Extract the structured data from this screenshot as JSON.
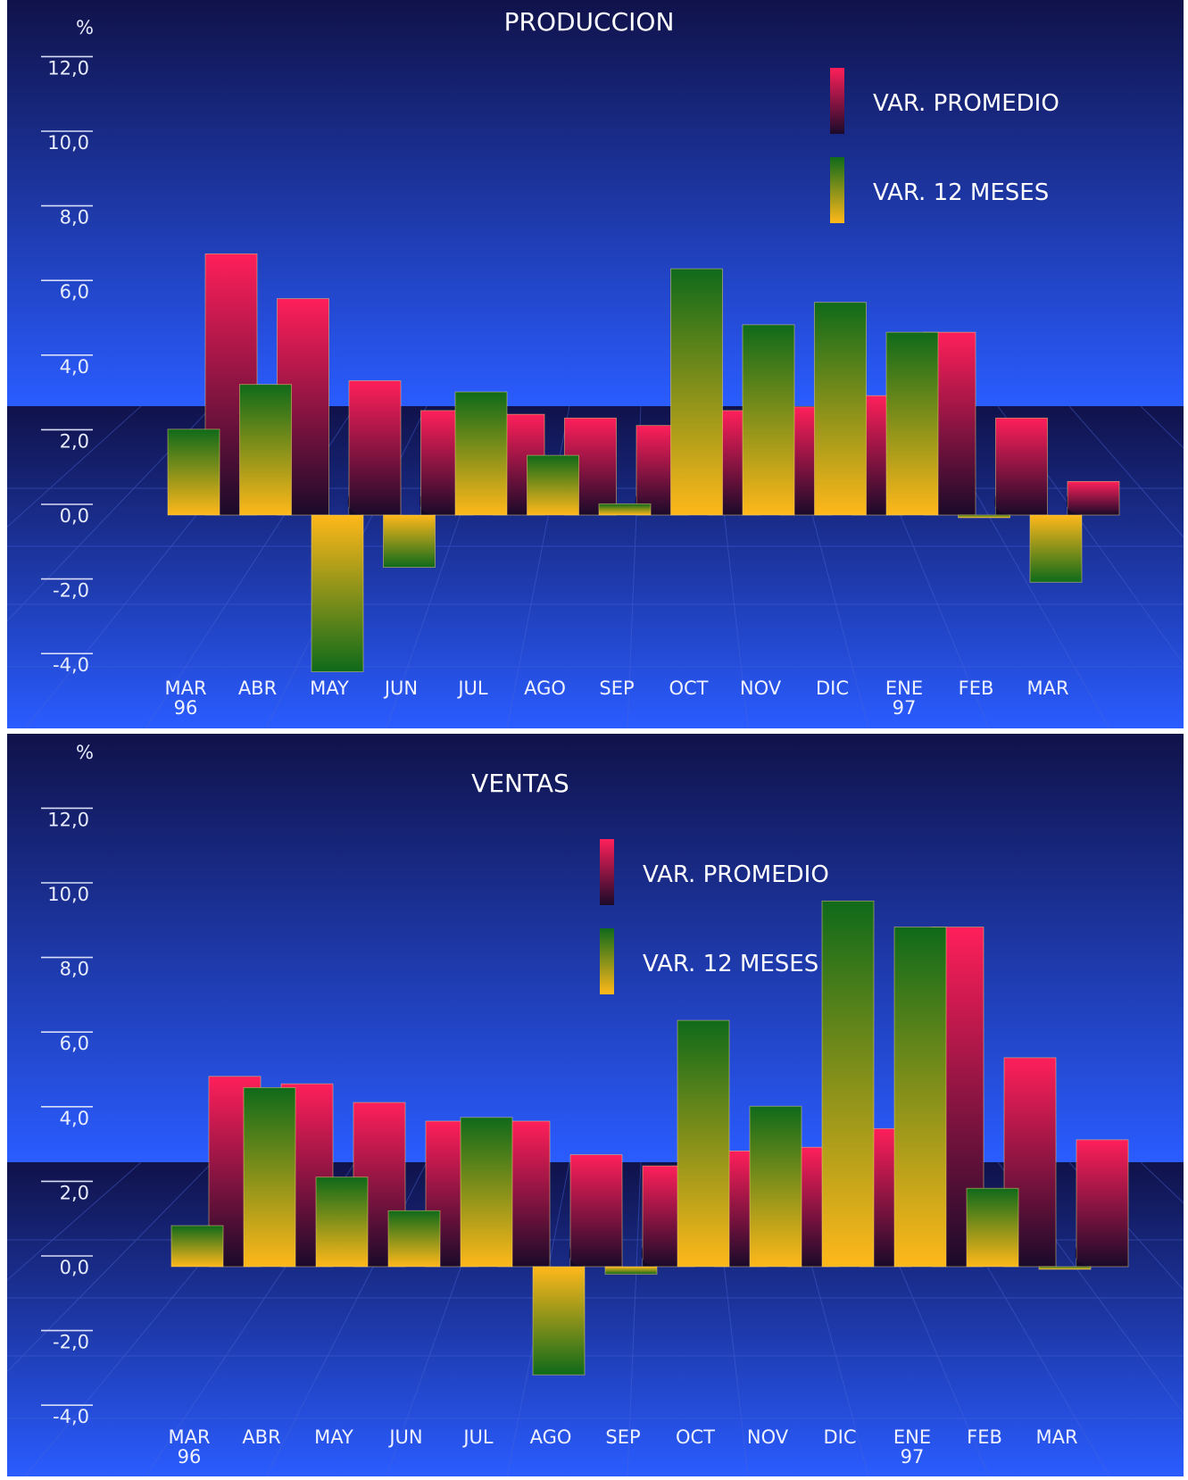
{
  "colors": {
    "var_promedio_top": "#ff1f5a",
    "var_promedio_bottom": "#1a0a2a",
    "var_12_top": "#0f6a1a",
    "var_12_bottom": "#ffb81a",
    "bg_dark": "#10124a",
    "bg_light": "#2a5cff"
  },
  "chart_data": [
    {
      "type": "bar",
      "title": "PRODUCCION",
      "unit": "%",
      "ylim": [
        -4,
        12
      ],
      "yticks": [
        "12,0",
        "10,0",
        "8,0",
        "6,0",
        "4,0",
        "2,0",
        "0,0",
        "-2,0",
        "-4,0"
      ],
      "categories": [
        "MAR 96",
        "ABR",
        "MAY",
        "JUN",
        "JUL",
        "AGO",
        "SEP",
        "OCT",
        "NOV",
        "DIC",
        "ENE 97",
        "FEB",
        "MAR"
      ],
      "category_labels": [
        [
          "MAR",
          "96"
        ],
        [
          "ABR"
        ],
        [
          "MAY"
        ],
        [
          "JUN"
        ],
        [
          "JUL"
        ],
        [
          "AGO"
        ],
        [
          "SEP"
        ],
        [
          "OCT"
        ],
        [
          "NOV"
        ],
        [
          "DIC"
        ],
        [
          "ENE",
          "97"
        ],
        [
          "FEB"
        ],
        [
          "MAR"
        ]
      ],
      "legend": [
        "VAR. PROMEDIO",
        "VAR. 12 MESES"
      ],
      "series": [
        {
          "name": "VAR. PROMEDIO",
          "values": [
            7.0,
            5.8,
            3.6,
            2.8,
            2.7,
            2.6,
            2.4,
            2.8,
            2.9,
            3.2,
            4.9,
            2.6,
            0.9
          ]
        },
        {
          "name": "VAR. 12 MESES",
          "values": [
            2.3,
            3.5,
            -4.2,
            -1.4,
            3.3,
            1.6,
            0.3,
            6.6,
            5.1,
            5.7,
            4.9,
            0.0,
            -1.8
          ]
        }
      ]
    },
    {
      "type": "bar",
      "title": "VENTAS",
      "unit": "%",
      "ylim": [
        -4,
        12
      ],
      "yticks": [
        "12,0",
        "10,0",
        "8,0",
        "6,0",
        "4,0",
        "2,0",
        "0,0",
        "-2,0",
        "-4,0"
      ],
      "categories": [
        "MAR 96",
        "ABR",
        "MAY",
        "JUN",
        "JUL",
        "AGO",
        "SEP",
        "OCT",
        "NOV",
        "DIC",
        "ENE 97",
        "FEB",
        "MAR"
      ],
      "category_labels": [
        [
          "MAR",
          "96"
        ],
        [
          "ABR"
        ],
        [
          "MAY"
        ],
        [
          "JUN"
        ],
        [
          "JUL"
        ],
        [
          "AGO"
        ],
        [
          "SEP"
        ],
        [
          "OCT"
        ],
        [
          "NOV"
        ],
        [
          "DIC"
        ],
        [
          "ENE",
          "97"
        ],
        [
          "FEB"
        ],
        [
          "MAR"
        ]
      ],
      "legend": [
        "VAR. PROMEDIO",
        "VAR. 12 MESES"
      ],
      "series": [
        {
          "name": "VAR. PROMEDIO",
          "values": [
            5.1,
            4.9,
            4.4,
            3.9,
            3.9,
            3.0,
            2.7,
            3.1,
            3.2,
            3.7,
            9.1,
            5.6,
            3.4
          ]
        },
        {
          "name": "VAR. 12 MESES",
          "values": [
            1.1,
            4.8,
            2.4,
            1.5,
            4.0,
            -2.9,
            -0.2,
            6.6,
            4.3,
            9.8,
            9.1,
            2.1,
            0.0
          ]
        }
      ]
    }
  ]
}
